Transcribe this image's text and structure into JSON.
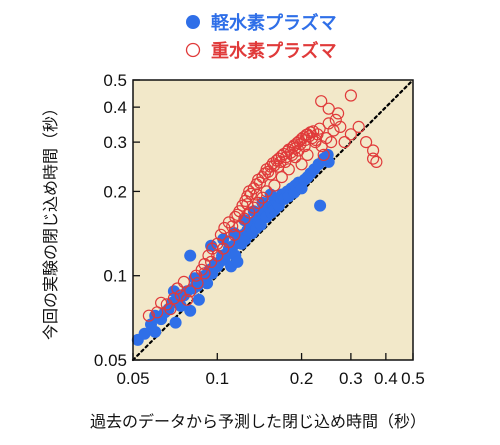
{
  "chart_data": {
    "type": "scatter",
    "xlabel": "過去のデータから予測した閉じ込め時間（秒）",
    "ylabel": "今回の実験の閉じ込め時間（秒）",
    "x_scale": "log",
    "y_scale": "log",
    "xlim": [
      0.05,
      0.5
    ],
    "ylim": [
      0.05,
      0.5
    ],
    "x_ticks": [
      0.05,
      0.1,
      0.2,
      0.3,
      0.4,
      0.5
    ],
    "y_ticks": [
      0.05,
      0.1,
      0.2,
      0.3,
      0.4,
      0.5
    ],
    "x_tick_labels": [
      "0.05",
      "0.1",
      "0.2",
      "0.3",
      "0.4",
      "0.5"
    ],
    "y_tick_labels": [
      "0.05",
      "0.1",
      "0.2",
      "0.3",
      "0.4",
      "0.5"
    ],
    "plot_background": "#f2e8c9",
    "reference_line": {
      "style": "dotted",
      "color": "#000000",
      "from": [
        0.05,
        0.05
      ],
      "to": [
        0.5,
        0.5
      ]
    },
    "legend_position": "top",
    "series": [
      {
        "name": "軽水素プラズマ",
        "marker": "filled-circle",
        "color": "#2f6fe8",
        "points": [
          [
            0.052,
            0.059
          ],
          [
            0.055,
            0.062
          ],
          [
            0.058,
            0.067
          ],
          [
            0.06,
            0.063
          ],
          [
            0.06,
            0.072
          ],
          [
            0.063,
            0.07
          ],
          [
            0.065,
            0.074
          ],
          [
            0.067,
            0.076
          ],
          [
            0.069,
            0.08
          ],
          [
            0.071,
            0.068
          ],
          [
            0.072,
            0.082
          ],
          [
            0.074,
            0.078
          ],
          [
            0.076,
            0.085
          ],
          [
            0.078,
            0.088
          ],
          [
            0.08,
            0.075
          ],
          [
            0.082,
            0.09
          ],
          [
            0.083,
            0.098
          ],
          [
            0.085,
            0.092
          ],
          [
            0.088,
            0.096
          ],
          [
            0.09,
            0.1
          ],
          [
            0.092,
            0.094
          ],
          [
            0.094,
            0.105
          ],
          [
            0.096,
            0.102
          ],
          [
            0.098,
            0.11
          ],
          [
            0.1,
            0.108
          ],
          [
            0.102,
            0.112
          ],
          [
            0.104,
            0.118
          ],
          [
            0.106,
            0.114
          ],
          [
            0.108,
            0.12
          ],
          [
            0.11,
            0.125
          ],
          [
            0.112,
            0.122
          ],
          [
            0.114,
            0.128
          ],
          [
            0.116,
            0.118
          ],
          [
            0.118,
            0.132
          ],
          [
            0.12,
            0.136
          ],
          [
            0.122,
            0.13
          ],
          [
            0.124,
            0.14
          ],
          [
            0.126,
            0.135
          ],
          [
            0.128,
            0.145
          ],
          [
            0.13,
            0.15
          ],
          [
            0.133,
            0.142
          ],
          [
            0.136,
            0.155
          ],
          [
            0.138,
            0.148
          ],
          [
            0.14,
            0.16
          ],
          [
            0.143,
            0.152
          ],
          [
            0.146,
            0.165
          ],
          [
            0.148,
            0.17
          ],
          [
            0.15,
            0.162
          ],
          [
            0.153,
            0.175
          ],
          [
            0.156,
            0.168
          ],
          [
            0.158,
            0.18
          ],
          [
            0.16,
            0.172
          ],
          [
            0.163,
            0.185
          ],
          [
            0.166,
            0.178
          ],
          [
            0.168,
            0.19
          ],
          [
            0.17,
            0.195
          ],
          [
            0.174,
            0.188
          ],
          [
            0.178,
            0.2
          ],
          [
            0.18,
            0.192
          ],
          [
            0.184,
            0.205
          ],
          [
            0.188,
            0.198
          ],
          [
            0.19,
            0.21
          ],
          [
            0.195,
            0.215
          ],
          [
            0.2,
            0.205
          ],
          [
            0.205,
            0.22
          ],
          [
            0.21,
            0.225
          ],
          [
            0.215,
            0.232
          ],
          [
            0.222,
            0.24
          ],
          [
            0.23,
            0.25
          ],
          [
            0.24,
            0.262
          ],
          [
            0.248,
            0.27
          ],
          [
            0.25,
            0.255
          ],
          [
            0.233,
            0.178
          ],
          [
            0.08,
            0.118
          ],
          [
            0.095,
            0.128
          ],
          [
            0.105,
            0.135
          ],
          [
            0.115,
            0.142
          ],
          [
            0.125,
            0.158
          ],
          [
            0.135,
            0.17
          ],
          [
            0.145,
            0.182
          ],
          [
            0.155,
            0.195
          ],
          [
            0.07,
            0.088
          ],
          [
            0.086,
            0.082
          ],
          [
            0.112,
            0.108
          ],
          [
            0.118,
            0.112
          ]
        ]
      },
      {
        "name": "重水素プラズマ",
        "marker": "open-circle",
        "color": "#e03a3a",
        "points": [
          [
            0.057,
            0.072
          ],
          [
            0.063,
            0.08
          ],
          [
            0.068,
            0.076
          ],
          [
            0.072,
            0.09
          ],
          [
            0.076,
            0.095
          ],
          [
            0.08,
            0.088
          ],
          [
            0.084,
            0.1
          ],
          [
            0.088,
            0.105
          ],
          [
            0.09,
            0.11
          ],
          [
            0.093,
            0.118
          ],
          [
            0.096,
            0.125
          ],
          [
            0.1,
            0.13
          ],
          [
            0.103,
            0.14
          ],
          [
            0.106,
            0.148
          ],
          [
            0.11,
            0.155
          ],
          [
            0.113,
            0.15
          ],
          [
            0.116,
            0.162
          ],
          [
            0.12,
            0.17
          ],
          [
            0.123,
            0.178
          ],
          [
            0.126,
            0.185
          ],
          [
            0.128,
            0.192
          ],
          [
            0.13,
            0.2
          ],
          [
            0.132,
            0.196
          ],
          [
            0.135,
            0.205
          ],
          [
            0.138,
            0.212
          ],
          [
            0.14,
            0.22
          ],
          [
            0.142,
            0.215
          ],
          [
            0.145,
            0.225
          ],
          [
            0.148,
            0.232
          ],
          [
            0.15,
            0.24
          ],
          [
            0.152,
            0.235
          ],
          [
            0.155,
            0.245
          ],
          [
            0.158,
            0.252
          ],
          [
            0.16,
            0.248
          ],
          [
            0.163,
            0.258
          ],
          [
            0.166,
            0.262
          ],
          [
            0.168,
            0.255
          ],
          [
            0.17,
            0.268
          ],
          [
            0.173,
            0.272
          ],
          [
            0.176,
            0.265
          ],
          [
            0.178,
            0.278
          ],
          [
            0.18,
            0.282
          ],
          [
            0.183,
            0.275
          ],
          [
            0.186,
            0.288
          ],
          [
            0.188,
            0.292
          ],
          [
            0.19,
            0.285
          ],
          [
            0.193,
            0.298
          ],
          [
            0.196,
            0.302
          ],
          [
            0.198,
            0.295
          ],
          [
            0.2,
            0.308
          ],
          [
            0.203,
            0.312
          ],
          [
            0.206,
            0.305
          ],
          [
            0.208,
            0.318
          ],
          [
            0.21,
            0.32
          ],
          [
            0.213,
            0.315
          ],
          [
            0.215,
            0.325
          ],
          [
            0.218,
            0.31
          ],
          [
            0.22,
            0.328
          ],
          [
            0.224,
            0.3
          ],
          [
            0.228,
            0.32
          ],
          [
            0.232,
            0.335
          ],
          [
            0.236,
            0.29
          ],
          [
            0.24,
            0.27
          ],
          [
            0.245,
            0.31
          ],
          [
            0.25,
            0.35
          ],
          [
            0.255,
            0.3
          ],
          [
            0.26,
            0.33
          ],
          [
            0.265,
            0.36
          ],
          [
            0.275,
            0.34
          ],
          [
            0.285,
            0.3
          ],
          [
            0.3,
            0.32
          ],
          [
            0.32,
            0.34
          ],
          [
            0.34,
            0.3
          ],
          [
            0.36,
            0.28
          ],
          [
            0.36,
            0.262
          ],
          [
            0.37,
            0.255
          ],
          [
            0.235,
            0.42
          ],
          [
            0.3,
            0.44
          ],
          [
            0.27,
            0.38
          ],
          [
            0.25,
            0.395
          ],
          [
            0.21,
            0.27
          ],
          [
            0.2,
            0.25
          ],
          [
            0.19,
            0.265
          ],
          [
            0.18,
            0.24
          ],
          [
            0.17,
            0.225
          ],
          [
            0.16,
            0.21
          ],
          [
            0.15,
            0.2
          ],
          [
            0.145,
            0.19
          ],
          [
            0.14,
            0.182
          ],
          [
            0.135,
            0.175
          ],
          [
            0.13,
            0.168
          ],
          [
            0.125,
            0.16
          ],
          [
            0.12,
            0.15
          ],
          [
            0.115,
            0.14
          ],
          [
            0.11,
            0.132
          ],
          [
            0.105,
            0.125
          ],
          [
            0.1,
            0.118
          ],
          [
            0.095,
            0.112
          ],
          [
            0.09,
            0.102
          ],
          [
            0.085,
            0.094
          ],
          [
            0.078,
            0.082
          ],
          [
            0.074,
            0.085
          ],
          [
            0.07,
            0.083
          ],
          [
            0.066,
            0.079
          ],
          [
            0.061,
            0.074
          ],
          [
            0.155,
            0.23
          ],
          [
            0.165,
            0.245
          ],
          [
            0.175,
            0.255
          ],
          [
            0.185,
            0.27
          ],
          [
            0.195,
            0.28
          ],
          [
            0.205,
            0.29
          ],
          [
            0.225,
            0.305
          ],
          [
            0.118,
            0.165
          ],
          [
            0.128,
            0.18
          ],
          [
            0.138,
            0.195
          ]
        ]
      }
    ]
  }
}
